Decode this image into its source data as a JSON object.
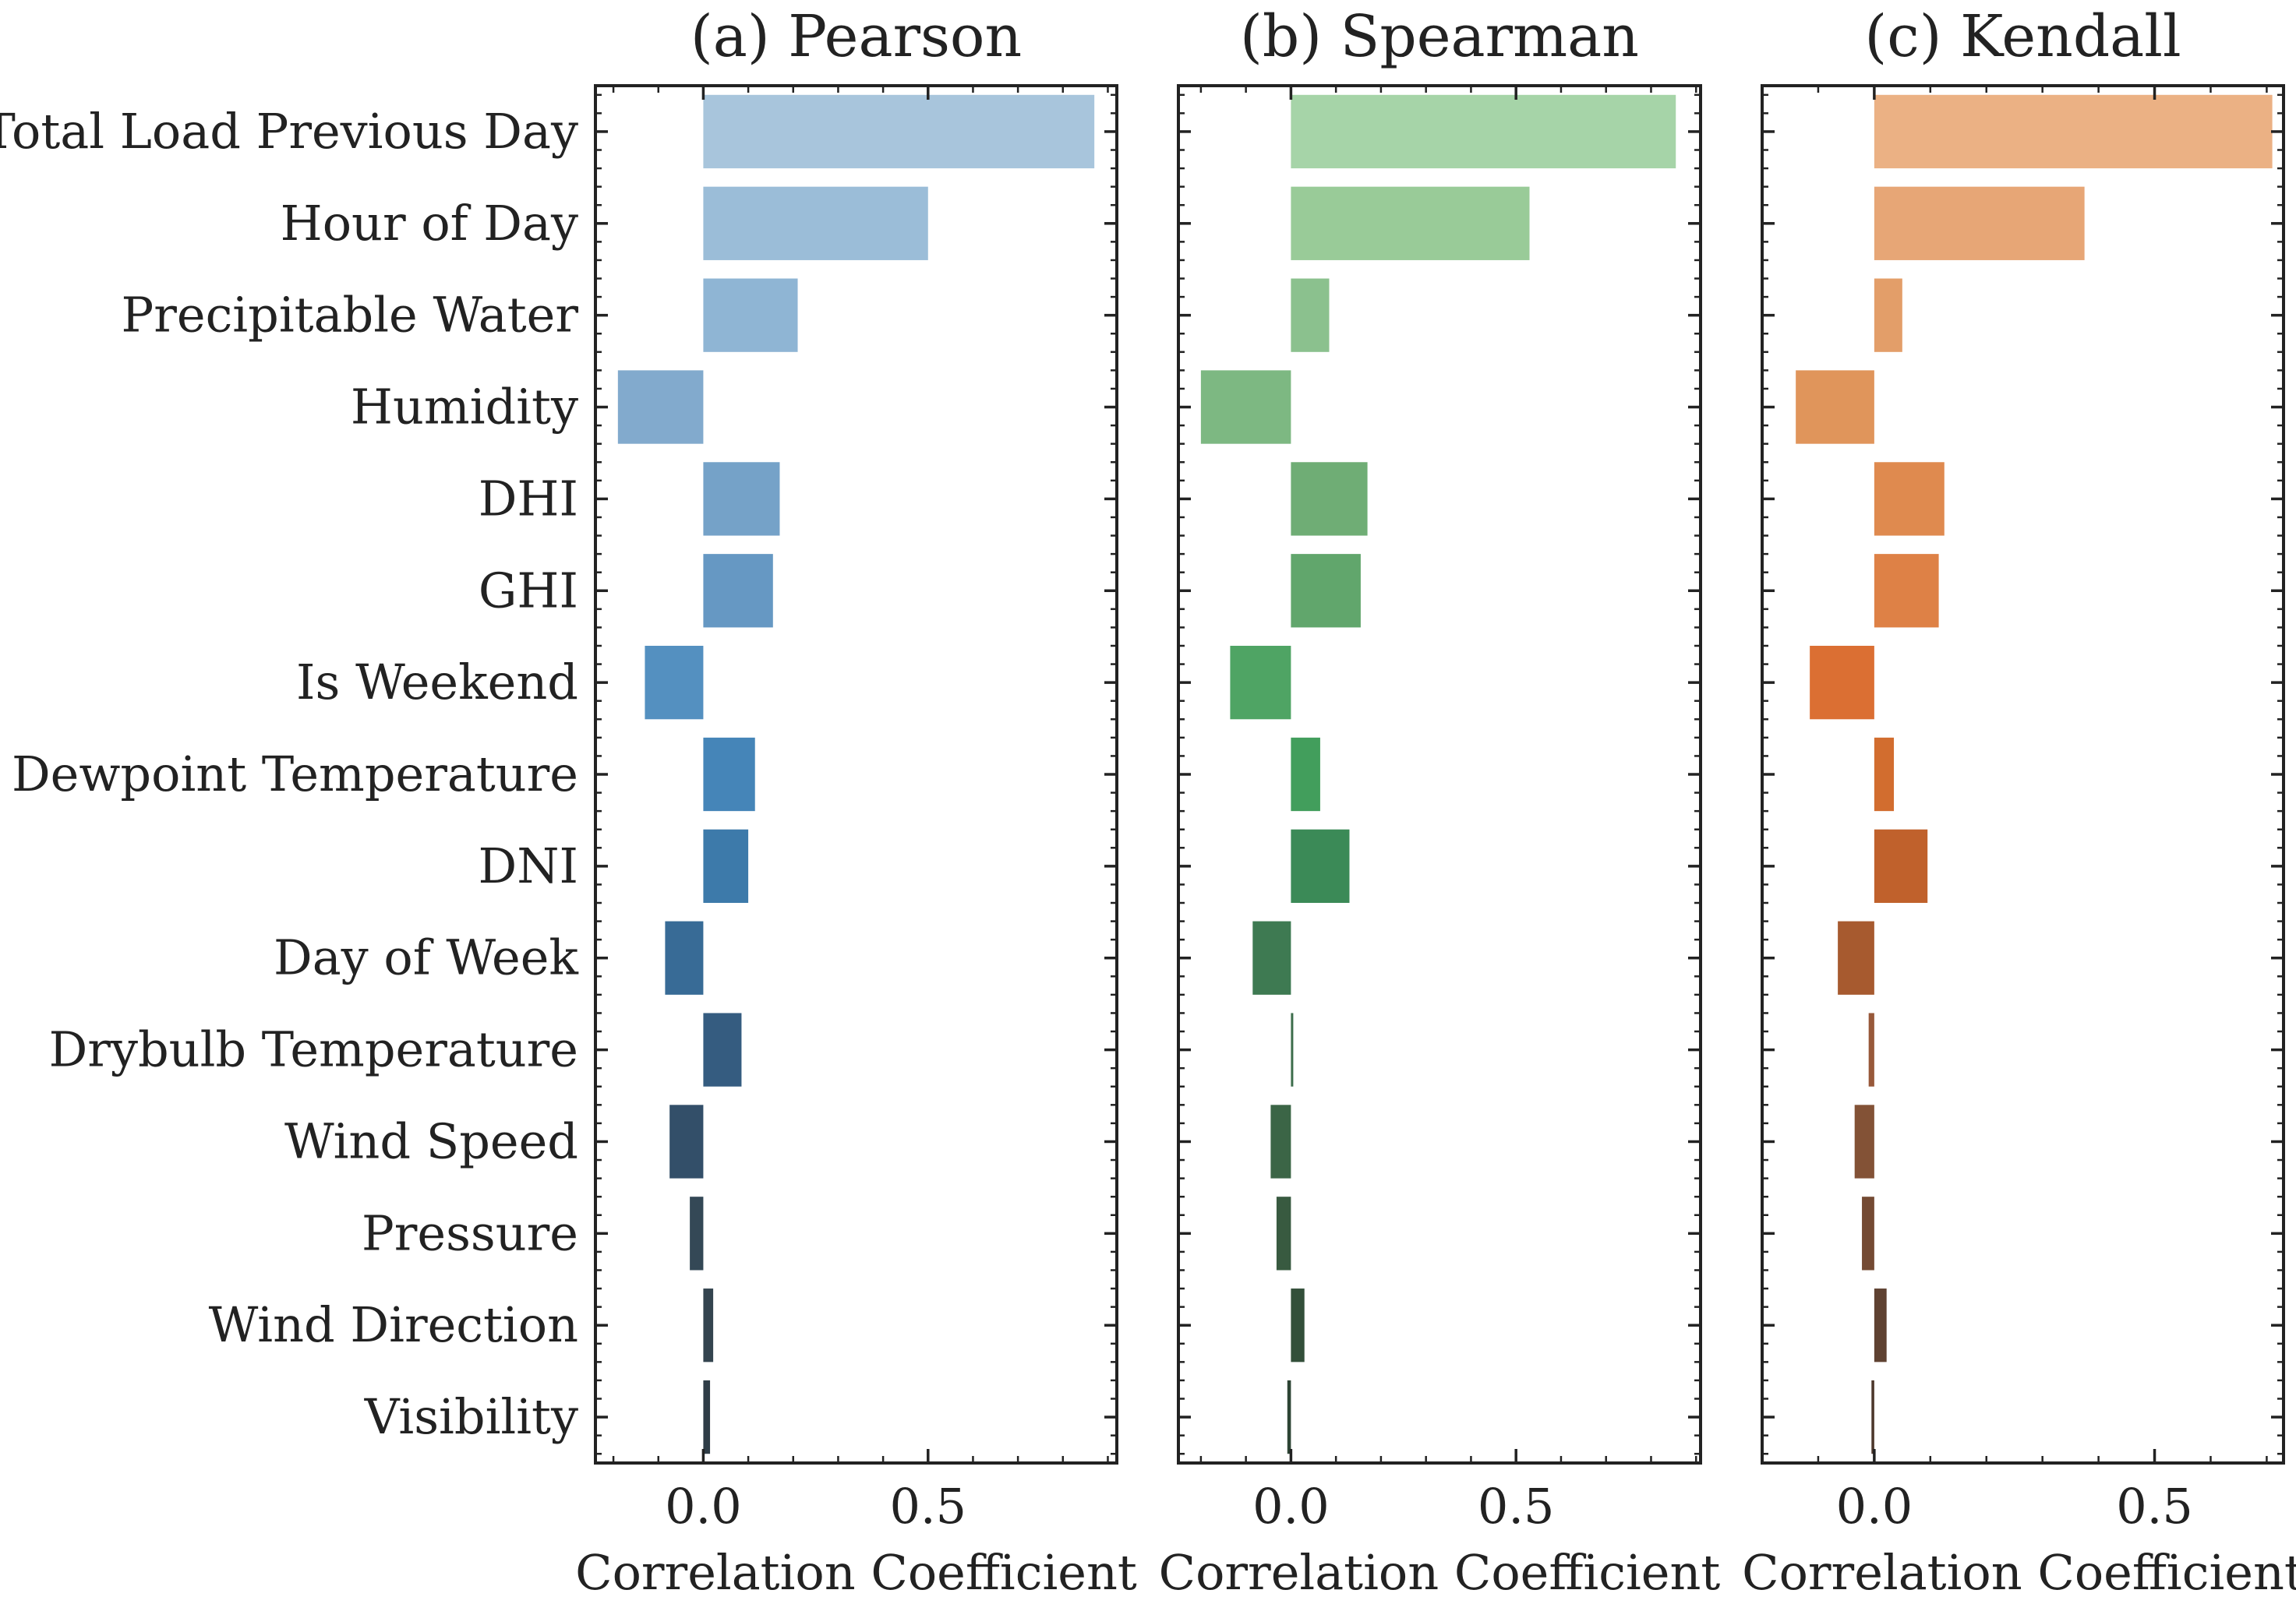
{
  "chart_data": {
    "type": "bar",
    "orientation": "horizontal",
    "categories": [
      "Total Load Previous Day",
      "Hour of Day",
      "Precipitable Water",
      "Humidity",
      "DHI",
      "GHI",
      "Is Weekend",
      "Dewpoint Temperature",
      "DNI",
      "Day of Week",
      "Drybulb Temperature",
      "Wind Speed",
      "Pressure",
      "Wind Direction",
      "Visibility"
    ],
    "panels": [
      {
        "title": "(a) Pearson",
        "xlabel": "Correlation Coefficient",
        "xlim": [
          -0.24,
          0.92
        ],
        "xticks": [
          0.0,
          0.5
        ],
        "xtick_labels": [
          "0.0",
          "0.5"
        ],
        "palette": "blues",
        "colors": [
          "#a8c5dc",
          "#9bbdd8",
          "#8fb5d4",
          "#82aacd",
          "#75a2c8",
          "#6698c3",
          "#5490c0",
          "#4585b8",
          "#3d7aaa",
          "#386b96",
          "#355c80",
          "#334f69",
          "#344856",
          "#34444f",
          "#2f3d47"
        ],
        "values": [
          0.87,
          0.5,
          0.21,
          -0.19,
          0.17,
          0.155,
          -0.13,
          0.115,
          0.1,
          -0.085,
          0.085,
          -0.075,
          -0.03,
          0.022,
          0.015
        ]
      },
      {
        "title": "(b) Spearman",
        "xlabel": "Correlation Coefficient",
        "xlim": [
          -0.25,
          0.91
        ],
        "xticks": [
          0.0,
          0.5
        ],
        "xtick_labels": [
          "0.0",
          "0.5"
        ],
        "palette": "greens",
        "colors": [
          "#a6d4a8",
          "#99cb98",
          "#8bc18e",
          "#7db882",
          "#6fad75",
          "#61a66c",
          "#4fa464",
          "#429e5c",
          "#3b8a57",
          "#3e7a52",
          "#3d6e4c",
          "#3b6546",
          "#385a40",
          "#334f3a",
          "#2d4434"
        ],
        "values": [
          0.855,
          0.53,
          0.085,
          -0.2,
          0.17,
          0.155,
          -0.135,
          0.065,
          0.13,
          -0.085,
          0.005,
          -0.045,
          -0.032,
          0.03,
          -0.008
        ]
      },
      {
        "title": "(c) Kendall",
        "xlabel": "Correlation Coefficient",
        "xlim": [
          -0.2,
          0.73
        ],
        "xticks": [
          0.0,
          0.5
        ],
        "xtick_labels": [
          "0.0",
          "0.5"
        ],
        "palette": "oranges",
        "colors": [
          "#ebb184",
          "#e7a676",
          "#e39e69",
          "#e0955b",
          "#df8a4f",
          "#de8146",
          "#db6f33",
          "#d26d2f",
          "#c0612c",
          "#a75a2f",
          "#98593a",
          "#835236",
          "#744a33",
          "#5f4232",
          "#4d382c"
        ],
        "values": [
          0.71,
          0.375,
          0.05,
          -0.14,
          0.125,
          0.115,
          -0.115,
          0.035,
          0.095,
          -0.065,
          -0.01,
          -0.035,
          -0.022,
          0.022,
          -0.005
        ]
      }
    ]
  }
}
